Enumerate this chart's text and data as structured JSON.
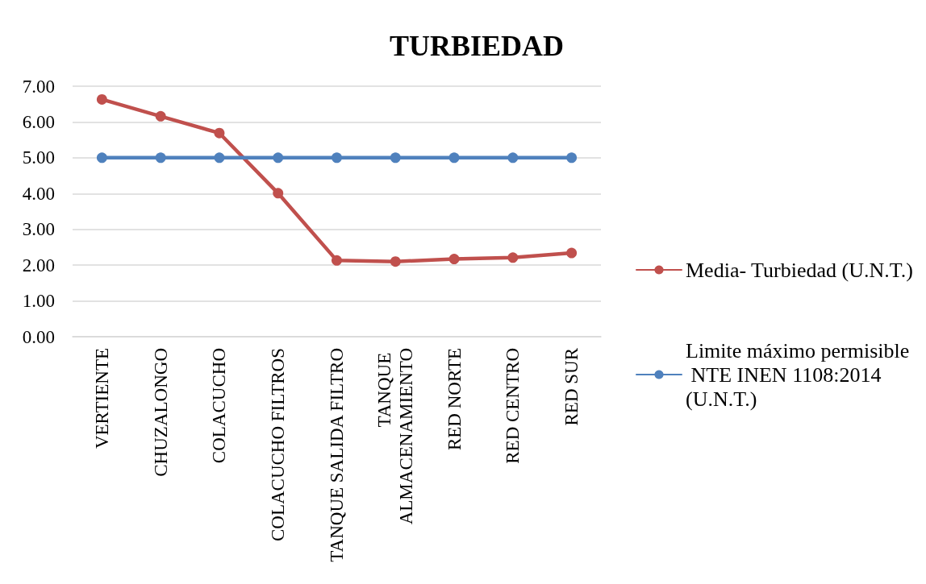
{
  "chart_data": {
    "type": "line",
    "title": "TURBIEDAD",
    "categories": [
      "VERTIENTE",
      "CHUZALONGO",
      "COLACUCHO",
      "COLACUCHO FILTROS",
      "TANQUE SALIDA FILTRO",
      "TANQUE ALMACENAMIENTO",
      "RED NORTE",
      "RED CENTRO",
      "RED SUR"
    ],
    "series": [
      {
        "name": "Media- Turbiedad (U.N.T.)",
        "color": "#c0504d",
        "values": [
          6.63,
          6.16,
          5.69,
          4.01,
          2.13,
          2.1,
          2.17,
          2.21,
          2.34
        ]
      },
      {
        "name": "Limite máximo permisible NTE INEN 1108:2014 (U.N.T.)",
        "color": "#4f81bd",
        "values": [
          5,
          5,
          5,
          5,
          5,
          5,
          5,
          5,
          5
        ]
      }
    ],
    "ylim": [
      0,
      7
    ],
    "yticks": [
      {
        "value": 0,
        "label": "0.00"
      },
      {
        "value": 1,
        "label": "1.00"
      },
      {
        "value": 2,
        "label": "2.00"
      },
      {
        "value": 3,
        "label": "3.00"
      },
      {
        "value": 4,
        "label": "4.00"
      },
      {
        "value": 5,
        "label": "5.00"
      },
      {
        "value": 6,
        "label": "6.00"
      },
      {
        "value": 7,
        "label": "7.00"
      }
    ],
    "grid": "y",
    "legend": "right",
    "marker": "circle",
    "line_style": "solid"
  }
}
